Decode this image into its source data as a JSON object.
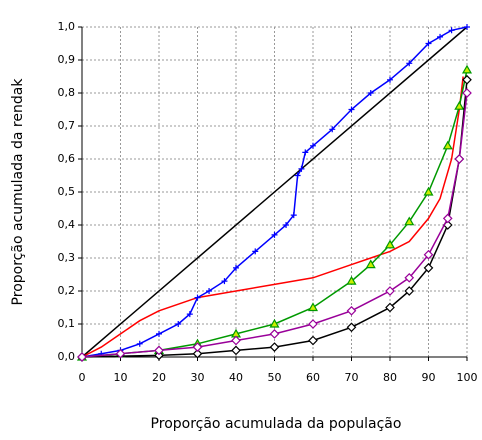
{
  "chart_data": {
    "type": "line",
    "xlabel": "Proporção acumulada da população",
    "ylabel": "Proporção acumulada da rendak",
    "xlim": [
      0,
      100
    ],
    "xticks": [
      0,
      10,
      20,
      30,
      40,
      50,
      60,
      70,
      80,
      90,
      100
    ],
    "ylim": [
      0,
      1
    ],
    "yticks": [
      {
        "value": 0,
        "label": "0,0"
      },
      {
        "value": 0.1,
        "label": "0,1"
      },
      {
        "value": 0.2,
        "label": "0,2"
      },
      {
        "value": 0.3,
        "label": "0,3"
      },
      {
        "value": 0.4,
        "label": "0,4"
      },
      {
        "value": 0.5,
        "label": "0,5"
      },
      {
        "value": 0.6,
        "label": "0,6"
      },
      {
        "value": 0.7,
        "label": "0,7"
      },
      {
        "value": 0.8,
        "label": "0,8"
      },
      {
        "value": 0.9,
        "label": "0,9"
      },
      {
        "value": 1,
        "label": "1,0"
      }
    ],
    "grid": true,
    "series": [
      {
        "color": "#000000",
        "marker": "none",
        "x": [
          0,
          100
        ],
        "values": [
          0,
          1
        ]
      },
      {
        "color": "#ff0000",
        "marker": "none",
        "x": [
          0,
          5,
          10,
          15,
          20,
          25,
          30,
          40,
          50,
          60,
          70,
          75,
          80,
          85,
          90,
          93,
          96,
          98,
          99
        ],
        "values": [
          0,
          0.03,
          0.07,
          0.11,
          0.14,
          0.16,
          0.18,
          0.2,
          0.22,
          0.24,
          0.28,
          0.3,
          0.32,
          0.35,
          0.42,
          0.48,
          0.6,
          0.75,
          0.85
        ]
      },
      {
        "color": "#0000ff",
        "marker": "plus",
        "x": [
          0,
          5,
          10,
          15,
          20,
          25,
          28,
          30,
          33,
          37,
          40,
          45,
          50,
          53,
          55,
          56,
          57,
          58,
          60,
          65,
          70,
          75,
          80,
          85,
          90,
          93,
          96,
          100
        ],
        "values": [
          0,
          0.01,
          0.02,
          0.04,
          0.07,
          0.1,
          0.13,
          0.18,
          0.2,
          0.23,
          0.27,
          0.32,
          0.37,
          0.4,
          0.43,
          0.55,
          0.57,
          0.62,
          0.64,
          0.69,
          0.75,
          0.8,
          0.84,
          0.89,
          0.95,
          0.97,
          0.99,
          1
        ]
      },
      {
        "color": "#009900",
        "marker": "triangle",
        "x": [
          0,
          10,
          20,
          30,
          40,
          50,
          60,
          70,
          75,
          80,
          85,
          90,
          95,
          98,
          100
        ],
        "values": [
          0,
          0.01,
          0.02,
          0.04,
          0.07,
          0.1,
          0.15,
          0.23,
          0.28,
          0.34,
          0.41,
          0.5,
          0.64,
          0.76,
          0.87
        ]
      },
      {
        "color": "#000000",
        "marker": "diamond",
        "x": [
          0,
          20,
          30,
          40,
          50,
          60,
          70,
          80,
          85,
          90,
          95,
          98,
          100
        ],
        "values": [
          0,
          0.005,
          0.01,
          0.02,
          0.03,
          0.05,
          0.09,
          0.15,
          0.2,
          0.27,
          0.4,
          0.6,
          0.84
        ]
      },
      {
        "color": "#990099",
        "marker": "diamond",
        "x": [
          0,
          10,
          20,
          30,
          40,
          50,
          60,
          70,
          80,
          85,
          90,
          95,
          98,
          100
        ],
        "values": [
          0,
          0.01,
          0.02,
          0.03,
          0.05,
          0.07,
          0.1,
          0.14,
          0.2,
          0.24,
          0.31,
          0.42,
          0.6,
          0.8
        ]
      }
    ]
  }
}
